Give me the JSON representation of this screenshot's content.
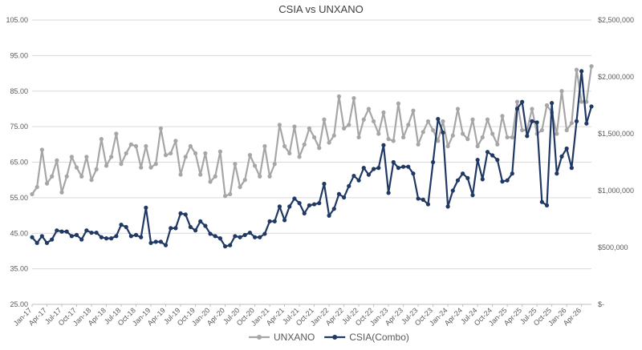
{
  "chart_data": {
    "type": "line",
    "title": "CSIA vs UNXANO",
    "xlabel": "",
    "ylabel": "",
    "y_left_lim": [
      25,
      105
    ],
    "y_left_ticks": [
      "105.00",
      "95.00",
      "85.00",
      "75.00",
      "65.00",
      "55.00",
      "45.00",
      "35.00",
      "25.00"
    ],
    "y_right_lim": [
      0,
      2500000
    ],
    "y_right_ticks": [
      "$2,500,000",
      "$2,000,000",
      "$1,500,000",
      "$1,000,000",
      "$500,000",
      "$-"
    ],
    "grid": true,
    "legend_position": "bottom",
    "x_tick_labels": [
      "Jan-17",
      "Apr-17",
      "Jul-17",
      "Oct-17",
      "Jan-18",
      "Apr-18",
      "Jul-18",
      "Oct-18",
      "Jan-19",
      "Apr-19",
      "Jul-19",
      "Oct-19",
      "Jan-20",
      "Apr-20",
      "Jul-20",
      "Oct-20",
      "Jan-21",
      "Apr-21",
      "Jul-21",
      "Oct-21",
      "Jan-22",
      "Apr-22",
      "Jul-22",
      "Oct-22",
      "Jan-23",
      "Apr-23",
      "Jul-23",
      "Oct-23",
      "Jan-24",
      "Apr-24",
      "Jul-24",
      "Oct-24",
      "Jan-25",
      "Apr-25",
      "Jul-25",
      "Oct-25",
      "Jan-26",
      "Apr-26"
    ],
    "series": [
      {
        "name": "UNXANO",
        "axis": "left",
        "color": "#a6a6a6",
        "values": [
          56,
          58,
          68.5,
          59,
          61,
          65.5,
          56.5,
          61,
          66.5,
          63.5,
          61,
          66.5,
          60,
          63,
          71.5,
          64,
          66.5,
          73,
          64.5,
          67.5,
          70,
          69.5,
          63.5,
          69.5,
          63.5,
          64.5,
          74.5,
          67,
          67.5,
          71,
          61.5,
          66.5,
          69.5,
          67.5,
          61.5,
          67.5,
          59.5,
          61,
          68,
          55.5,
          56,
          64.5,
          58,
          60,
          67,
          64,
          61,
          69.5,
          61,
          64.5,
          75.5,
          69.5,
          67.5,
          75,
          66.5,
          70,
          74.5,
          72,
          69,
          77,
          70.5,
          72.5,
          83.5,
          74.5,
          75.5,
          83,
          72,
          77,
          80,
          76.5,
          73,
          79,
          71.5,
          71,
          81.5,
          72,
          75.5,
          79.5,
          70,
          73.5,
          76.5,
          74,
          71,
          76.5,
          69.5,
          72.5,
          80,
          73,
          71.5,
          77,
          69.5,
          72,
          77,
          73,
          70,
          78,
          72,
          72,
          82,
          74,
          74,
          80,
          73,
          74,
          81,
          79,
          73,
          85,
          74,
          76,
          91,
          82,
          82,
          92
        ]
      },
      {
        "name": "CSIA(Combo)",
        "axis": "right",
        "color": "#203864",
        "values": [
          590000,
          540000,
          600000,
          540000,
          570000,
          650000,
          640000,
          640000,
          600000,
          610000,
          570000,
          650000,
          630000,
          630000,
          590000,
          580000,
          580000,
          600000,
          700000,
          680000,
          600000,
          610000,
          590000,
          850000,
          540000,
          550000,
          550000,
          520000,
          670000,
          670000,
          800000,
          790000,
          680000,
          650000,
          730000,
          690000,
          620000,
          600000,
          580000,
          510000,
          520000,
          600000,
          590000,
          610000,
          630000,
          590000,
          590000,
          620000,
          730000,
          730000,
          860000,
          740000,
          860000,
          930000,
          890000,
          800000,
          870000,
          880000,
          890000,
          1060000,
          780000,
          840000,
          970000,
          940000,
          1040000,
          1130000,
          1090000,
          1200000,
          1140000,
          1190000,
          1200000,
          1400000,
          980000,
          1250000,
          1200000,
          1210000,
          1210000,
          1150000,
          930000,
          920000,
          880000,
          1250000,
          1630000,
          1510000,
          860000,
          1000000,
          1090000,
          1150000,
          1110000,
          960000,
          1270000,
          1100000,
          1340000,
          1310000,
          1270000,
          1080000,
          1090000,
          1150000,
          1720000,
          1780000,
          1480000,
          1610000,
          1600000,
          900000,
          870000,
          1770000,
          1150000,
          1300000,
          1370000,
          1200000,
          1610000,
          2050000,
          1590000,
          1740000
        ]
      }
    ]
  }
}
